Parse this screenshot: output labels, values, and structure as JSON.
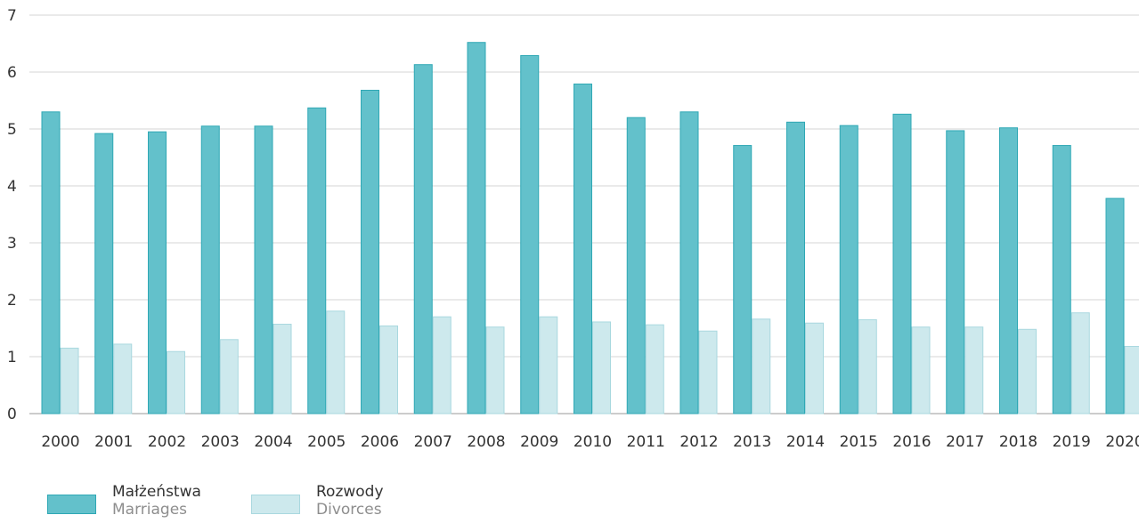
{
  "chart_data": {
    "type": "bar",
    "categories": [
      "2000",
      "2001",
      "2002",
      "2003",
      "2004",
      "2005",
      "2006",
      "2007",
      "2008",
      "2009",
      "2010",
      "2011",
      "2012",
      "2013",
      "2014",
      "2015",
      "2016",
      "2017",
      "2018",
      "2019",
      "2020"
    ],
    "series": [
      {
        "name": "Małżeństwa",
        "name_en": "Marriages",
        "color": "#63c1cb",
        "border": "#2fa8b5",
        "values": [
          5.3,
          4.92,
          4.95,
          5.05,
          5.05,
          5.37,
          5.68,
          6.13,
          6.52,
          6.29,
          5.79,
          5.2,
          5.3,
          4.71,
          5.12,
          5.06,
          5.26,
          4.97,
          5.02,
          4.71,
          3.78
        ]
      },
      {
        "name": "Rozwody",
        "name_en": "Divorces",
        "color": "#cde9ed",
        "border": "#a9d8df",
        "values": [
          1.15,
          1.22,
          1.09,
          1.3,
          1.57,
          1.8,
          1.54,
          1.7,
          1.52,
          1.7,
          1.61,
          1.56,
          1.45,
          1.66,
          1.59,
          1.65,
          1.52,
          1.52,
          1.48,
          1.77,
          1.18
        ]
      }
    ],
    "y_ticks": [
      "0",
      "1",
      "2",
      "3",
      "4",
      "5",
      "6",
      "7"
    ],
    "ylim": [
      0,
      7
    ],
    "grid": true,
    "legend_position": "bottom-left"
  }
}
